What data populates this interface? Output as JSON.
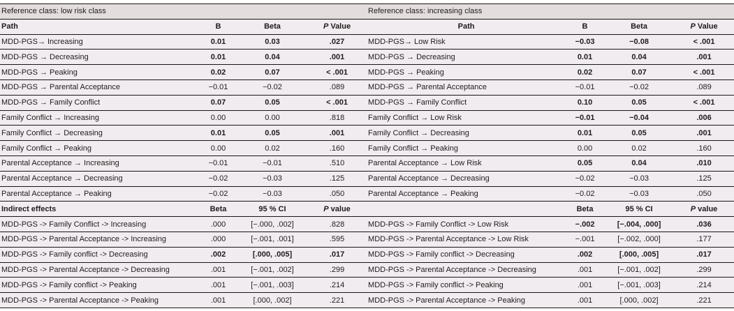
{
  "colors": {
    "row_bg": "#f1ecef",
    "reference_band_bg": "#e4dddd",
    "rule_line": "#161616",
    "text": "#1d1d1d"
  },
  "table": {
    "panels": [
      {
        "reference_label": "Reference class: low risk class",
        "direct_headers": {
          "path": "Path",
          "b": "B",
          "beta": "Beta",
          "p_italic": "P",
          "p_rest": " Value"
        },
        "direct_rows": [
          {
            "path": "MDD-PGS→ Increasing",
            "b": "0.01",
            "beta": "0.03",
            "p": ".027",
            "significant": true
          },
          {
            "path": "MDD-PGS → Decreasing",
            "b": "0.01",
            "beta": "0.04",
            "p": ".001",
            "significant": true
          },
          {
            "path": "MDD-PGS → Peaking",
            "b": "0.02",
            "beta": "0.07",
            "p": "< .001",
            "significant": true
          },
          {
            "path": "MDD-PGS → Parental Acceptance",
            "b": "−0.01",
            "beta": "−0.02",
            "p": ".089",
            "significant": false
          },
          {
            "path": "MDD-PGS → Family Conflict",
            "b": "0.07",
            "beta": "0.05",
            "p": "< .001",
            "significant": true
          },
          {
            "path": "Family Conflict → Increasing",
            "b": "0.00",
            "beta": "0.00",
            "p": ".818",
            "significant": false
          },
          {
            "path": "Family Conflict → Decreasing",
            "b": "0.01",
            "beta": "0.05",
            "p": ".001",
            "significant": true
          },
          {
            "path": "Family Conflict → Peaking",
            "b": "0.00",
            "beta": "0.02",
            "p": ".160",
            "significant": false
          },
          {
            "path": "Parental Acceptance → Increasing",
            "b": "−0.01",
            "beta": "−0.01",
            "p": ".510",
            "significant": false
          },
          {
            "path": "Parental Acceptance → Decreasing",
            "b": "−0.02",
            "beta": "−0.03",
            "p": ".125",
            "significant": false
          },
          {
            "path": "Parental Acceptance → Peaking",
            "b": "−0.02",
            "beta": "−0.03",
            "p": ".050",
            "significant": false
          }
        ],
        "indirect_headers": {
          "label": "Indirect effects",
          "beta": "Beta",
          "ci": "95 % CI",
          "p_italic": "P",
          "p_rest": " value"
        },
        "indirect_rows": [
          {
            "path": "MDD-PGS -> Family Conflict -> Increasing",
            "beta": ".000",
            "ci": "[−.000, .002]",
            "p": ".828",
            "significant": false
          },
          {
            "path": "MDD-PGS -> Parental Acceptance -> Increasing",
            "beta": ".000",
            "ci": "[−.001, .001]",
            "p": ".595",
            "significant": false
          },
          {
            "path": "MDD-PGS -> Family conflict -> Decreasing",
            "beta": ".002",
            "ci": "[.000, .005]",
            "p": ".017",
            "significant": true
          },
          {
            "path": "MDD-PGS -> Parental Acceptance -> Decreasing",
            "beta": ".001",
            "ci": "[−.001, .002]",
            "p": ".299",
            "significant": false
          },
          {
            "path": "MDD-PGS -> Family conflict -> Peaking",
            "beta": ".001",
            "ci": "[−.001, .003]",
            "p": ".214",
            "significant": false
          },
          {
            "path": "MDD-PGS -> Parental Acceptance -> Peaking",
            "beta": ".001",
            "ci": "[.000, .002]",
            "p": ".221",
            "significant": false
          }
        ]
      },
      {
        "reference_label": "Reference class: increasing class",
        "direct_headers": {
          "path": "Path",
          "b": "B",
          "beta": "Beta",
          "p_italic": "P",
          "p_rest": " Value"
        },
        "direct_rows": [
          {
            "path": "MDD-PGS→ Low Risk",
            "b": "−0.03",
            "beta": "−0.08",
            "p": "< .001",
            "significant": true
          },
          {
            "path": "MDD-PGS → Decreasing",
            "b": "0.01",
            "beta": "0.04",
            "p": ".001",
            "significant": true
          },
          {
            "path": "MDD-PGS → Peaking",
            "b": "0.02",
            "beta": "0.07",
            "p": "< .001",
            "significant": true
          },
          {
            "path": "MDD-PGS → Parental Acceptance",
            "b": "−0.01",
            "beta": "−0.02",
            "p": ".089",
            "significant": false
          },
          {
            "path": "MDD-PGS → Family Conflict",
            "b": "0.10",
            "beta": "0.05",
            "p": "< .001",
            "significant": true
          },
          {
            "path": "Family Conflict → Low Risk",
            "b": "−0.01",
            "beta": "−0.04",
            "p": ".006",
            "significant": true
          },
          {
            "path": "Family Conflict → Decreasing",
            "b": "0.01",
            "beta": "0.05",
            "p": ".001",
            "significant": true
          },
          {
            "path": "Family Conflict → Peaking",
            "b": "0.00",
            "beta": "0.02",
            "p": ".160",
            "significant": false
          },
          {
            "path": "Parental Acceptance → Low Risk",
            "b": "0.05",
            "beta": "0.04",
            "p": ".010",
            "significant": true
          },
          {
            "path": "Parental Acceptance → Decreasing",
            "b": "−0.02",
            "beta": "−0.03",
            "p": ".125",
            "significant": false
          },
          {
            "path": "Parental Acceptance → Peaking",
            "b": "−0.02",
            "beta": "−0.03",
            "p": ".050",
            "significant": false
          }
        ],
        "indirect_headers": {
          "label": "",
          "beta": "Beta",
          "ci": "95 % CI",
          "p_italic": "P",
          "p_rest": " value"
        },
        "indirect_rows": [
          {
            "path": "MDD-PGS -> Family Conflict -> Low Risk",
            "beta": "−.002",
            "ci": "[−.004, .000]",
            "p": ".036",
            "significant": true
          },
          {
            "path": "MDD-PGS -> Parental Acceptance -> Low Risk",
            "beta": "−.001",
            "ci": "[−.002, .000]",
            "p": ".177",
            "significant": false
          },
          {
            "path": "MDD-PGS -> Family conflict -> Decreasing",
            "beta": ".002",
            "ci": "[.000, .005]",
            "p": ".017",
            "significant": true
          },
          {
            "path": "MDD-PGS -> Parental Acceptance -> Decreasing",
            "beta": ".001",
            "ci": "[−.001, .002]",
            "p": ".299",
            "significant": false
          },
          {
            "path": "MDD-PGS -> Family conflict -> Peaking",
            "beta": ".001",
            "ci": "[−.001, .003]",
            "p": ".214",
            "significant": false
          },
          {
            "path": "MDD-PGS -> Parental Acceptance -> Peaking",
            "beta": ".001",
            "ci": "[.000, .002]",
            "p": ".221",
            "significant": false
          }
        ]
      }
    ]
  }
}
